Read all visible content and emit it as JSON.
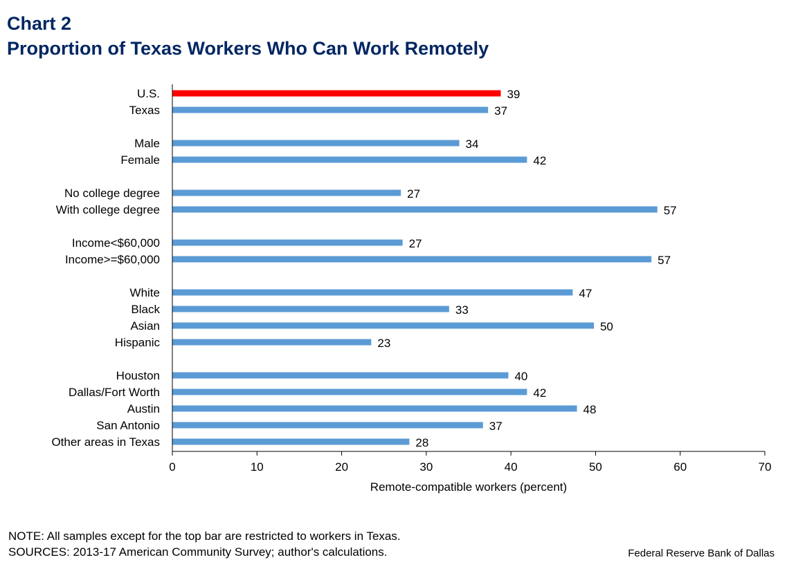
{
  "header": {
    "chart_number": "Chart 2",
    "title": "Proportion of Texas Workers Who Can Work Remotely"
  },
  "footer": {
    "note": "NOTE: All samples except for the top bar are restricted to workers in Texas.",
    "sources": "SOURCES: 2013-17 American Community Survey; author's calculations.",
    "credit": "Federal Reserve Bank of Dallas"
  },
  "colors": {
    "highlight_bar": "#ff0000",
    "bar": "#5b9bd5",
    "title": "#002663"
  },
  "chart_data": {
    "type": "bar",
    "orientation": "horizontal",
    "title": "Proportion of Texas Workers Who Can Work Remotely",
    "xlabel": "Remote-compatible workers (percent)",
    "ylabel": "",
    "xlim": [
      0,
      70
    ],
    "xticks": [
      0,
      10,
      20,
      30,
      40,
      50,
      60,
      70
    ],
    "grid": false,
    "groups": [
      {
        "categories": [
          "U.S.",
          "Texas"
        ],
        "values": [
          38.8,
          37.3
        ],
        "labels": [
          "39",
          "37"
        ],
        "highlight": [
          true,
          false
        ]
      },
      {
        "categories": [
          "Male",
          "Female"
        ],
        "values": [
          33.9,
          41.9
        ],
        "labels": [
          "34",
          "42"
        ]
      },
      {
        "categories": [
          "No college degree",
          "With college degree"
        ],
        "values": [
          27.0,
          57.3
        ],
        "labels": [
          "27",
          "57"
        ]
      },
      {
        "categories": [
          "Income<$60,000",
          "Income>=$60,000"
        ],
        "values": [
          27.2,
          56.6
        ],
        "labels": [
          "27",
          "57"
        ]
      },
      {
        "categories": [
          "White",
          "Black",
          "Asian",
          "Hispanic"
        ],
        "values": [
          47.3,
          32.7,
          49.8,
          23.5
        ],
        "labels": [
          "47",
          "33",
          "50",
          "23"
        ]
      },
      {
        "categories": [
          "Houston",
          "Dallas/Fort Worth",
          "Austin",
          "San Antonio",
          "Other areas in Texas"
        ],
        "values": [
          39.7,
          41.9,
          47.8,
          36.7,
          28.0
        ],
        "labels": [
          "40",
          "42",
          "48",
          "37",
          "28"
        ]
      }
    ]
  }
}
